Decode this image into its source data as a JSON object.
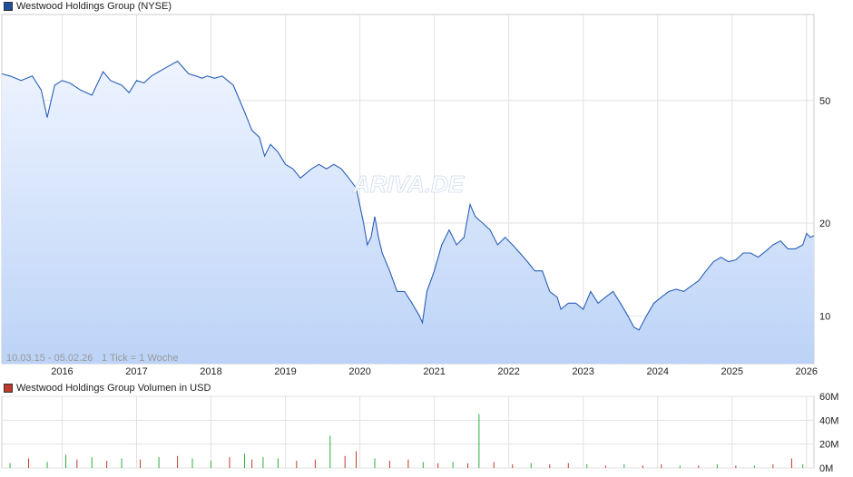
{
  "chart_data": [
    {
      "type": "line",
      "title": "Westwood Holdings Group (NYSE)",
      "legend_color": "#1f4e9e",
      "line_color": "#2b5fb8",
      "fill_top": "#eef4ff",
      "fill_bottom": "#bcd3f7",
      "y_scale": "log",
      "ylim": [
        7,
        95
      ],
      "y_ticks": [
        {
          "value": 10,
          "label": "10"
        },
        {
          "value": 20,
          "label": "20"
        },
        {
          "value": 50,
          "label": "50"
        }
      ],
      "xlim": [
        2015.19,
        2026.1
      ],
      "x_ticks": [
        {
          "value": 2016,
          "label": "2016"
        },
        {
          "value": 2017,
          "label": "2017"
        },
        {
          "value": 2018,
          "label": "2018"
        },
        {
          "value": 2019,
          "label": "2019"
        },
        {
          "value": 2020,
          "label": "2020"
        },
        {
          "value": 2021,
          "label": "2021"
        },
        {
          "value": 2022,
          "label": "2022"
        },
        {
          "value": 2023,
          "label": "2023"
        },
        {
          "value": 2024,
          "label": "2024"
        },
        {
          "value": 2025,
          "label": "2025"
        },
        {
          "value": 2026,
          "label": "2026"
        }
      ],
      "grid": true,
      "range_label": "10.03.15 - 05.02.26",
      "tick_label": "1 Tick = 1 Woche",
      "watermark": "ARIVA.DE",
      "series": [
        {
          "name": "Westwood Holdings Group",
          "x": [
            2015.19,
            2015.3,
            2015.45,
            2015.6,
            2015.72,
            2015.8,
            2015.9,
            2016.0,
            2016.1,
            2016.25,
            2016.4,
            2016.55,
            2016.65,
            2016.8,
            2016.9,
            2017.0,
            2017.1,
            2017.2,
            2017.3,
            2017.4,
            2017.55,
            2017.7,
            2017.8,
            2017.88,
            2017.95,
            2018.05,
            2018.15,
            2018.3,
            2018.45,
            2018.55,
            2018.65,
            2018.72,
            2018.8,
            2018.9,
            2019.0,
            2019.1,
            2019.2,
            2019.35,
            2019.45,
            2019.55,
            2019.65,
            2019.75,
            2019.85,
            2019.95,
            2020.05,
            2020.1,
            2020.15,
            2020.2,
            2020.25,
            2020.3,
            2020.4,
            2020.5,
            2020.6,
            2020.7,
            2020.8,
            2020.84,
            2020.9,
            2021.0,
            2021.1,
            2021.2,
            2021.3,
            2021.4,
            2021.48,
            2021.55,
            2021.65,
            2021.75,
            2021.85,
            2021.95,
            2022.05,
            2022.15,
            2022.25,
            2022.35,
            2022.45,
            2022.55,
            2022.65,
            2022.7,
            2022.8,
            2022.9,
            2023.0,
            2023.1,
            2023.2,
            2023.3,
            2023.4,
            2023.5,
            2023.6,
            2023.68,
            2023.75,
            2023.85,
            2023.95,
            2024.05,
            2024.15,
            2024.25,
            2024.35,
            2024.45,
            2024.55,
            2024.65,
            2024.75,
            2024.85,
            2024.95,
            2025.05,
            2025.15,
            2025.25,
            2025.35,
            2025.45,
            2025.55,
            2025.65,
            2025.75,
            2025.85,
            2025.95,
            2026.0,
            2026.05,
            2026.1
          ],
          "y": [
            61,
            60,
            58,
            60,
            54,
            44,
            56,
            58,
            57,
            54,
            52,
            62,
            58,
            56,
            53,
            58,
            57,
            60,
            62,
            64,
            67,
            61,
            60,
            59,
            60,
            59,
            60,
            56,
            46,
            40,
            38,
            33,
            36,
            34,
            31,
            30,
            28,
            30,
            31,
            30,
            31,
            30,
            28,
            26,
            20,
            17,
            18,
            21,
            18,
            16,
            14,
            12,
            12,
            11,
            10,
            9.5,
            12,
            14,
            17,
            19,
            17,
            18,
            23,
            21,
            20,
            19,
            17,
            18,
            17,
            16,
            15,
            14,
            14,
            12,
            11.5,
            10.5,
            11,
            11,
            10.5,
            12,
            11,
            11.5,
            12,
            11,
            10,
            9.2,
            9.0,
            10,
            11,
            11.5,
            12,
            12.2,
            12,
            12.5,
            13,
            14,
            15,
            15.5,
            15,
            15.2,
            16,
            16,
            15.5,
            16.2,
            17,
            17.5,
            16.5,
            16.5,
            17,
            18.5,
            18,
            18.2
          ]
        }
      ]
    },
    {
      "type": "bar",
      "title": "Westwood Holdings Group Volumen in USD",
      "legend_color": "#c0392b",
      "up_color": "#27ae3c",
      "down_color": "#c0392b",
      "ylim": [
        0,
        60
      ],
      "unit": "M",
      "y_ticks": [
        {
          "value": 0,
          "label": "0M"
        },
        {
          "value": 20,
          "label": "20M"
        },
        {
          "value": 40,
          "label": "40M"
        },
        {
          "value": 60,
          "label": "60M"
        }
      ],
      "xlim": [
        2015.19,
        2026.1
      ],
      "x_ticks_values": [
        2016,
        2017,
        2018,
        2019,
        2020,
        2021,
        2022,
        2023,
        2024,
        2025,
        2026
      ],
      "grid": true,
      "series": [
        {
          "name": "Volumen",
          "x": [
            2015.3,
            2015.55,
            2015.8,
            2016.05,
            2016.2,
            2016.4,
            2016.6,
            2016.8,
            2017.05,
            2017.3,
            2017.55,
            2017.75,
            2018.0,
            2018.25,
            2018.45,
            2018.55,
            2018.7,
            2018.9,
            2019.15,
            2019.4,
            2019.6,
            2019.8,
            2019.95,
            2020.2,
            2020.4,
            2020.65,
            2020.85,
            2021.05,
            2021.25,
            2021.45,
            2021.6,
            2021.8,
            2022.05,
            2022.3,
            2022.55,
            2022.8,
            2023.05,
            2023.3,
            2023.55,
            2023.8,
            2024.05,
            2024.3,
            2024.55,
            2024.8,
            2025.05,
            2025.3,
            2025.55,
            2025.8,
            2025.95
          ],
          "values": [
            4,
            8,
            5,
            11,
            7,
            9,
            6,
            8,
            7,
            9,
            10,
            8,
            6,
            9,
            12,
            7,
            9,
            8,
            6,
            7,
            27,
            10,
            14,
            8,
            6,
            7,
            5,
            4,
            5,
            4,
            45,
            5,
            3,
            4,
            3,
            4,
            3,
            2,
            3,
            2,
            3,
            2,
            2,
            3,
            2,
            2,
            3,
            8,
            3
          ],
          "up": [
            true,
            false,
            true,
            true,
            false,
            true,
            false,
            true,
            false,
            true,
            false,
            true,
            true,
            false,
            true,
            false,
            true,
            true,
            false,
            false,
            true,
            false,
            false,
            true,
            false,
            false,
            true,
            false,
            true,
            false,
            true,
            false,
            false,
            true,
            false,
            false,
            true,
            false,
            true,
            false,
            false,
            true,
            false,
            true,
            false,
            true,
            false,
            false,
            true
          ]
        }
      ]
    }
  ]
}
